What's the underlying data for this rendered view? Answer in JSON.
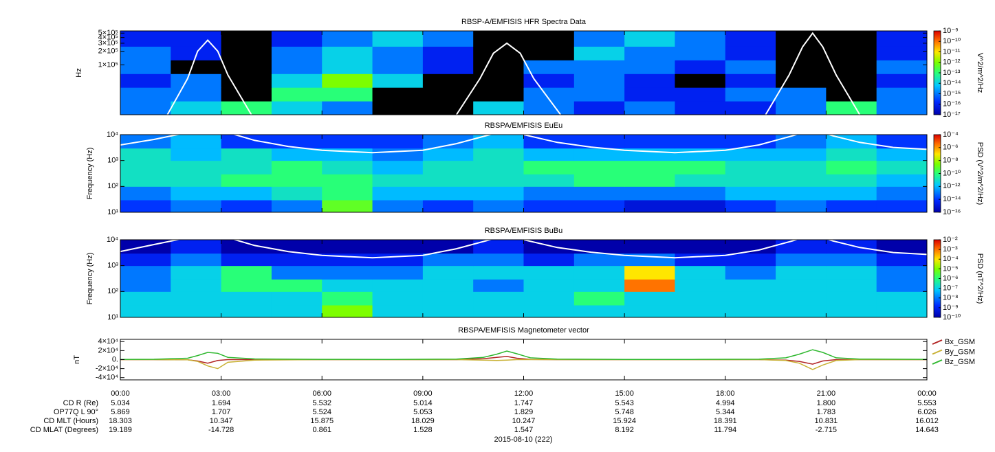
{
  "chart_data": [
    {
      "type": "heatmap",
      "title": "RBSP-A/EMFISIS  HFR Spectra Data",
      "ylabel": "Hz",
      "zlabel": "V^2/m^2/Hz",
      "xlim": [
        0,
        24
      ],
      "xticks": [
        0,
        3,
        6,
        9,
        12,
        15,
        18,
        21,
        24
      ],
      "ylim": [
        8000,
        560000
      ],
      "ylog": true,
      "yticks": [
        {
          "value": 100000,
          "label": "1×10⁵"
        },
        {
          "value": 200000,
          "label": "2×10⁵"
        },
        {
          "value": 300000,
          "label": "3×10⁵"
        },
        {
          "value": 400000,
          "label": "4×10⁵"
        },
        {
          "value": 500000,
          "label": "5×10⁵"
        }
      ],
      "xbins": [
        0,
        1.5,
        3,
        4.5,
        6,
        7.5,
        9,
        10.5,
        12,
        13.5,
        15,
        16.5,
        18,
        19.5,
        21,
        22.5,
        24
      ],
      "ybins": [
        8000,
        16000,
        32000,
        64000,
        128000,
        256000,
        560000
      ],
      "z": [
        [
          1e-15,
          1e-14,
          1e-13,
          1e-14,
          1e-15,
          null,
          null,
          1e-14,
          1e-15,
          1e-16,
          1e-15,
          1e-16,
          1e-16,
          1e-15,
          1e-13,
          1e-15
        ],
        [
          1e-15,
          1e-15,
          null,
          1e-13,
          1e-13,
          null,
          null,
          null,
          1e-15,
          1e-15,
          1e-16,
          1e-16,
          1e-15,
          1e-15,
          null,
          1e-15
        ],
        [
          1e-16,
          1e-15,
          null,
          1e-14,
          1e-12,
          1e-14,
          null,
          null,
          1e-16,
          1e-15,
          1e-16,
          null,
          1e-16,
          null,
          null,
          1e-16
        ],
        [
          1e-15,
          null,
          null,
          1e-15,
          1e-14,
          1e-15,
          1e-16,
          null,
          1e-15,
          1e-15,
          1e-15,
          1e-16,
          1e-15,
          null,
          null,
          1e-15
        ],
        [
          1e-15,
          1e-16,
          null,
          1e-15,
          1e-14,
          1e-15,
          1e-16,
          null,
          null,
          1e-14,
          1e-15,
          1e-15,
          1e-16,
          null,
          null,
          1e-16
        ],
        [
          1e-16,
          1e-16,
          null,
          1e-16,
          1e-15,
          1e-14,
          1e-15,
          null,
          null,
          1e-15,
          1e-14,
          1e-15,
          1e-16,
          null,
          null,
          1e-16
        ]
      ],
      "zlim": [
        1e-17,
        1e-09
      ],
      "zlog": true,
      "zticks": [
        {
          "value": 1e-17,
          "label": "10⁻¹⁷"
        },
        {
          "value": 1e-16,
          "label": "10⁻¹⁶"
        },
        {
          "value": 1e-15,
          "label": "10⁻¹⁵"
        },
        {
          "value": 1e-14,
          "label": "10⁻¹⁴"
        },
        {
          "value": 1e-13,
          "label": "10⁻¹³"
        },
        {
          "value": 1e-12,
          "label": "10⁻¹²"
        },
        {
          "value": 1e-11,
          "label": "10⁻¹¹"
        },
        {
          "value": 1e-10,
          "label": "10⁻¹⁰"
        },
        {
          "value": 1e-09,
          "label": "10⁻⁹"
        }
      ],
      "overlay": {
        "color": "#ffffff",
        "x": [
          1.4,
          2.0,
          2.3,
          2.6,
          2.9,
          3.2,
          3.9,
          6,
          10.0,
          10.7,
          11.1,
          11.5,
          11.9,
          12.3,
          13.1,
          16,
          19.2,
          19.9,
          20.3,
          20.6,
          20.9,
          21.3,
          22.0
        ],
        "values": [
          8000,
          50000,
          200000,
          350000,
          200000,
          60000,
          8000,
          null,
          8000,
          50000,
          180000,
          300000,
          180000,
          50000,
          8000,
          null,
          8000,
          60000,
          250000,
          500000,
          250000,
          60000,
          8000
        ]
      }
    },
    {
      "type": "heatmap",
      "title": "RBSPA/EMFISIS  EuEu",
      "ylabel": "Frequency (Hz)",
      "zlabel": "PSD (V^2/m^2/Hz)",
      "xlim": [
        0,
        24
      ],
      "xticks": [
        0,
        3,
        6,
        9,
        12,
        15,
        18,
        21,
        24
      ],
      "ylim": [
        10,
        10000
      ],
      "ylog": true,
      "yticks": [
        {
          "value": 10,
          "label": "10¹"
        },
        {
          "value": 100,
          "label": "10²"
        },
        {
          "value": 1000,
          "label": "10³"
        },
        {
          "value": 10000,
          "label": "10⁴"
        }
      ],
      "xbins": [
        0,
        1.5,
        3,
        4.5,
        6,
        7.5,
        9,
        10.5,
        12,
        13.5,
        15,
        16.5,
        18,
        19.5,
        21,
        22.5,
        24
      ],
      "ybins": [
        10,
        30,
        100,
        300,
        1000,
        3000,
        10000
      ],
      "z": [
        [
          1e-14,
          1e-13,
          1e-14,
          1e-13,
          1e-09,
          1e-13,
          1e-14,
          1e-13,
          1e-14,
          1e-14,
          1e-15,
          1e-15,
          1e-14,
          1e-13,
          1e-14,
          1e-14
        ],
        [
          1e-13,
          1e-12,
          1e-12,
          1e-11,
          1e-10,
          1e-12,
          1e-12,
          1e-12,
          1e-13,
          1e-13,
          1e-13,
          1e-13,
          1e-12,
          1e-12,
          1e-12,
          1e-13
        ],
        [
          1e-11,
          1e-11,
          1e-10,
          1e-10,
          1e-10,
          1e-11,
          1e-11,
          1e-11,
          1e-11,
          1e-10,
          1e-10,
          1e-11,
          1e-11,
          1e-11,
          1e-11,
          1e-12
        ],
        [
          1e-11,
          1e-11,
          1e-11,
          1e-10,
          1e-11,
          1e-12,
          1e-11,
          1e-11,
          1e-10,
          1e-10,
          1e-10,
          1e-10,
          1e-11,
          1e-11,
          1e-10,
          1e-11
        ],
        [
          1e-11,
          1e-12,
          1e-11,
          1e-12,
          1e-12,
          1e-13,
          1e-12,
          1e-11,
          1e-12,
          1e-12,
          1e-12,
          1e-12,
          1e-12,
          1e-12,
          1e-11,
          1e-12
        ],
        [
          1e-13,
          1e-12,
          1e-14,
          1e-14,
          1e-14,
          1e-14,
          1e-13,
          1e-12,
          1e-14,
          1e-14,
          1e-14,
          1e-14,
          1e-14,
          1e-13,
          1e-12,
          1e-14
        ]
      ],
      "zlim": [
        1e-16,
        0.0001
      ],
      "zlog": true,
      "zticks": [
        {
          "value": 1e-16,
          "label": "10⁻¹⁶"
        },
        {
          "value": 1e-14,
          "label": "10⁻¹⁴"
        },
        {
          "value": 1e-12,
          "label": "10⁻¹²"
        },
        {
          "value": 1e-10,
          "label": "10⁻¹⁰"
        },
        {
          "value": 1e-08,
          "label": "10⁻⁸"
        },
        {
          "value": 1e-06,
          "label": "10⁻⁶"
        },
        {
          "value": 0.0001,
          "label": "10⁻⁴"
        }
      ],
      "overlay": {
        "color": "#ffffff",
        "x": [
          0,
          1,
          2,
          2.6,
          3.2,
          4,
          5,
          6,
          7.5,
          9,
          10,
          11,
          11.5,
          12,
          13,
          14,
          15,
          16.5,
          18,
          19,
          20,
          20.6,
          21.2,
          22,
          23,
          24
        ],
        "values": [
          4000,
          6500,
          12000,
          20000,
          12000,
          6000,
          3500,
          2500,
          2000,
          2500,
          4500,
          10000,
          15000,
          10000,
          5000,
          3300,
          2500,
          2000,
          2500,
          4000,
          9000,
          16000,
          9000,
          5000,
          3200,
          2700
        ]
      }
    },
    {
      "type": "heatmap",
      "title": "RBSPA/EMFISIS  BuBu",
      "ylabel": "Frequency (Hz)",
      "zlabel": "PSD (nT^2/Hz)",
      "xlim": [
        0,
        24
      ],
      "xticks": [
        0,
        3,
        6,
        9,
        12,
        15,
        18,
        21,
        24
      ],
      "ylim": [
        10,
        10000
      ],
      "ylog": true,
      "yticks": [
        {
          "value": 10,
          "label": "10¹"
        },
        {
          "value": 100,
          "label": "10²"
        },
        {
          "value": 1000,
          "label": "10³"
        },
        {
          "value": 10000,
          "label": "10⁴"
        }
      ],
      "xbins": [
        0,
        1.5,
        3,
        4.5,
        6,
        7.5,
        9,
        10.5,
        12,
        13.5,
        15,
        16.5,
        18,
        19.5,
        21,
        22.5,
        24
      ],
      "ybins": [
        10,
        30,
        100,
        300,
        1000,
        3000,
        10000
      ],
      "z": [
        [
          1e-07,
          1e-07,
          1e-07,
          1e-07,
          1e-05,
          1e-07,
          1e-07,
          1e-07,
          1e-07,
          1e-07,
          1e-07,
          1e-07,
          1e-07,
          1e-07,
          1e-07,
          1e-07
        ],
        [
          1e-07,
          1e-07,
          1e-07,
          1e-07,
          1e-06,
          1e-07,
          1e-07,
          1e-07,
          1e-07,
          1e-06,
          1e-07,
          1e-07,
          1e-07,
          1e-07,
          1e-07,
          1e-07
        ],
        [
          1e-08,
          1e-07,
          1e-06,
          1e-06,
          1e-07,
          1e-07,
          1e-07,
          1e-08,
          1e-07,
          1e-07,
          0.001,
          1e-07,
          1e-07,
          1e-07,
          1e-07,
          1e-08
        ],
        [
          1e-08,
          1e-07,
          1e-06,
          1e-08,
          1e-08,
          1e-08,
          1e-07,
          1e-07,
          1e-07,
          1e-07,
          0.0001,
          1e-07,
          1e-08,
          1e-07,
          1e-07,
          1e-08
        ],
        [
          1e-09,
          1e-08,
          1e-09,
          1e-09,
          1e-09,
          1e-09,
          1e-08,
          1e-08,
          1e-09,
          1e-08,
          1e-08,
          1e-09,
          1e-09,
          1e-08,
          1e-08,
          1e-09
        ],
        [
          1e-10,
          1e-09,
          1e-10,
          1e-10,
          1e-10,
          1e-10,
          1e-10,
          1e-09,
          1e-10,
          1e-10,
          1e-10,
          1e-10,
          1e-10,
          1e-09,
          1e-09,
          1e-10
        ]
      ],
      "zlim": [
        1e-10,
        0.01
      ],
      "zlog": true,
      "zticks": [
        {
          "value": 1e-10,
          "label": "10⁻¹⁰"
        },
        {
          "value": 1e-09,
          "label": "10⁻⁹"
        },
        {
          "value": 1e-08,
          "label": "10⁻⁸"
        },
        {
          "value": 1e-07,
          "label": "10⁻⁷"
        },
        {
          "value": 1e-06,
          "label": "10⁻⁶"
        },
        {
          "value": 1e-05,
          "label": "10⁻⁵"
        },
        {
          "value": 0.0001,
          "label": "10⁻⁴"
        },
        {
          "value": 0.001,
          "label": "10⁻³"
        },
        {
          "value": 0.01,
          "label": "10⁻²"
        }
      ],
      "overlay": {
        "color": "#ffffff",
        "x": [
          0,
          1,
          2,
          2.6,
          3.2,
          4,
          5,
          6,
          7.5,
          9,
          10,
          11,
          11.5,
          12,
          13,
          14,
          15,
          16.5,
          18,
          19,
          20,
          20.6,
          21.2,
          22,
          23,
          24
        ],
        "values": [
          3500,
          6500,
          12000,
          20000,
          12000,
          6000,
          3500,
          2500,
          2000,
          2500,
          4500,
          10000,
          15000,
          10000,
          5000,
          3300,
          2500,
          2000,
          2500,
          4000,
          9000,
          16000,
          9000,
          5000,
          3200,
          2700
        ]
      }
    },
    {
      "type": "line",
      "title": "RBSPA/EMFISIS  Magnetometer vector",
      "ylabel": "nT",
      "xlim": [
        0,
        24
      ],
      "xticks": [
        {
          "value": 0,
          "label": "00:00"
        },
        {
          "value": 3,
          "label": "03:00"
        },
        {
          "value": 6,
          "label": "06:00"
        },
        {
          "value": 9,
          "label": "09:00"
        },
        {
          "value": 12,
          "label": "12:00"
        },
        {
          "value": 15,
          "label": "15:00"
        },
        {
          "value": 18,
          "label": "18:00"
        },
        {
          "value": 21,
          "label": "21:00"
        },
        {
          "value": 24,
          "label": "00:00"
        }
      ],
      "ylim": [
        -45000,
        45000
      ],
      "yticks": [
        {
          "value": -40000,
          "label": "-4×10⁴"
        },
        {
          "value": -20000,
          "label": "-2×10⁴"
        },
        {
          "value": 0,
          "label": "0."
        },
        {
          "value": 20000,
          "label": "2×10⁴"
        },
        {
          "value": 40000,
          "label": "4×10⁴"
        }
      ],
      "x": [
        0,
        1,
        2,
        2.3,
        2.6,
        2.9,
        3.2,
        4,
        6,
        8,
        10,
        10.8,
        11.2,
        11.5,
        11.8,
        12.2,
        13,
        15,
        17,
        19,
        19.8,
        20.2,
        20.6,
        20.9,
        21.3,
        22,
        24
      ],
      "series": [
        {
          "name": "Bx_GSM",
          "color": "#b22222",
          "values": [
            0,
            0,
            -500,
            -3000,
            -8000,
            -2000,
            0,
            0,
            0,
            0,
            0,
            2000,
            5000,
            7000,
            3000,
            500,
            0,
            0,
            0,
            0,
            -1000,
            -4000,
            -10000,
            -3000,
            0,
            0,
            0
          ]
        },
        {
          "name": "By_GSM",
          "color": "#c8b032",
          "values": [
            0,
            0,
            -500,
            -4000,
            -14000,
            -20000,
            -6000,
            -1000,
            0,
            0,
            0,
            -1000,
            -2000,
            -1000,
            0,
            0,
            0,
            0,
            0,
            0,
            -2000,
            -8000,
            -22000,
            -12000,
            -2000,
            0,
            0
          ]
        },
        {
          "name": "Bz_GSM",
          "color": "#2eb82e",
          "values": [
            500,
            800,
            3000,
            9000,
            16000,
            14000,
            5000,
            1500,
            600,
            500,
            1000,
            5000,
            12000,
            19000,
            13000,
            4000,
            1200,
            500,
            400,
            900,
            4000,
            12000,
            22000,
            16000,
            4000,
            1200,
            600
          ]
        }
      ]
    }
  ],
  "table": {
    "row_labels": [
      "CD R (Re)",
      "OP77Q L 90°",
      "CD MLT (Hours)",
      "CD MLAT (Degrees)"
    ],
    "rows": [
      [
        "5.034",
        "1.694",
        "5.532",
        "5.014",
        "1.747",
        "5.543",
        "4.994",
        "1.800",
        "5.553"
      ],
      [
        "5.869",
        "1.707",
        "5.524",
        "5.053",
        "1.829",
        "5.748",
        "5.344",
        "1.783",
        "6.026"
      ],
      [
        "18.303",
        "10.347",
        "15.875",
        "18.029",
        "10.247",
        "15.924",
        "18.391",
        "10.831",
        "16.012"
      ],
      [
        "19.189",
        "-14.728",
        "0.861",
        "1.528",
        "1.547",
        "8.192",
        "11.794",
        "-2.715",
        "14.643"
      ]
    ]
  },
  "date": "2015-08-10 (222)"
}
